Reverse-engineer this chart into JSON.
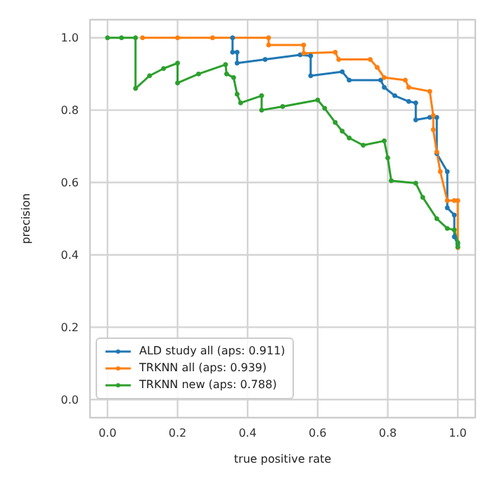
{
  "chart_data": {
    "type": "line",
    "xlabel": "true positive rate",
    "ylabel": "precision",
    "xlim": [
      -0.05,
      1.05
    ],
    "ylim": [
      -0.05,
      1.05
    ],
    "xticks": [
      {
        "value": 0,
        "label": "0.0"
      },
      {
        "value": 0.2,
        "label": "0.2"
      },
      {
        "value": 0.4,
        "label": "0.4"
      },
      {
        "value": 0.6,
        "label": "0.6"
      },
      {
        "value": 0.8,
        "label": "0.8"
      },
      {
        "value": 1,
        "label": "1.0"
      }
    ],
    "yticks": [
      {
        "value": 0,
        "label": "0.0"
      },
      {
        "value": 0.2,
        "label": "0.2"
      },
      {
        "value": 0.4,
        "label": "0.4"
      },
      {
        "value": 0.6,
        "label": "0.6"
      },
      {
        "value": 0.8,
        "label": "0.8"
      },
      {
        "value": 1,
        "label": "1.0"
      }
    ],
    "grid": true,
    "legend": "bottom left",
    "marker": "circle",
    "line_style": "solid",
    "series": [
      {
        "name": "ALD study all (aps: 0.911)",
        "color": "#1f77b4",
        "x": [
          0.357,
          0.357,
          0.37,
          0.37,
          0.45,
          0.55,
          0.58,
          0.58,
          0.67,
          0.69,
          0.78,
          0.79,
          0.82,
          0.86,
          0.88,
          0.88,
          0.92,
          0.94,
          0.94,
          0.97,
          0.97,
          0.99,
          0.99,
          1.0
        ],
        "values": [
          1,
          0.96,
          0.96,
          0.93,
          0.94,
          0.953,
          0.95,
          0.895,
          0.906,
          0.883,
          0.883,
          0.863,
          0.84,
          0.824,
          0.82,
          0.773,
          0.78,
          0.78,
          0.68,
          0.63,
          0.53,
          0.51,
          0.45,
          0.43
        ]
      },
      {
        "name": "TRKNN all (aps: 0.939)",
        "color": "#ff7f0e",
        "x": [
          0.1,
          0.2,
          0.3,
          0.46,
          0.46,
          0.56,
          0.56,
          0.65,
          0.66,
          0.75,
          0.77,
          0.79,
          0.85,
          0.86,
          0.92,
          0.93,
          0.93,
          0.94,
          0.95,
          0.97,
          0.99,
          1.0,
          1.0
        ],
        "values": [
          1,
          1,
          1,
          1,
          0.98,
          0.98,
          0.957,
          0.96,
          0.94,
          0.94,
          0.918,
          0.89,
          0.883,
          0.863,
          0.852,
          0.785,
          0.746,
          0.684,
          0.63,
          0.55,
          0.55,
          0.55,
          0.42
        ]
      },
      {
        "name": "TRKNN new (aps: 0.788)",
        "color": "#2ca02c",
        "x": [
          0,
          0.04,
          0.08,
          0.08,
          0.12,
          0.16,
          0.2,
          0.2,
          0.26,
          0.337,
          0.34,
          0.36,
          0.37,
          0.38,
          0.44,
          0.44,
          0.5,
          0.6,
          0.62,
          0.65,
          0.67,
          0.69,
          0.73,
          0.79,
          0.8,
          0.81,
          0.88,
          0.9,
          0.94,
          0.97,
          0.99,
          1.0,
          1.0
        ],
        "values": [
          1,
          1,
          1,
          0.86,
          0.895,
          0.915,
          0.93,
          0.875,
          0.9,
          0.926,
          0.9,
          0.89,
          0.844,
          0.82,
          0.84,
          0.8,
          0.81,
          0.828,
          0.805,
          0.766,
          0.742,
          0.723,
          0.703,
          0.715,
          0.668,
          0.605,
          0.598,
          0.559,
          0.5,
          0.473,
          0.469,
          0.434,
          0.422
        ]
      }
    ]
  }
}
